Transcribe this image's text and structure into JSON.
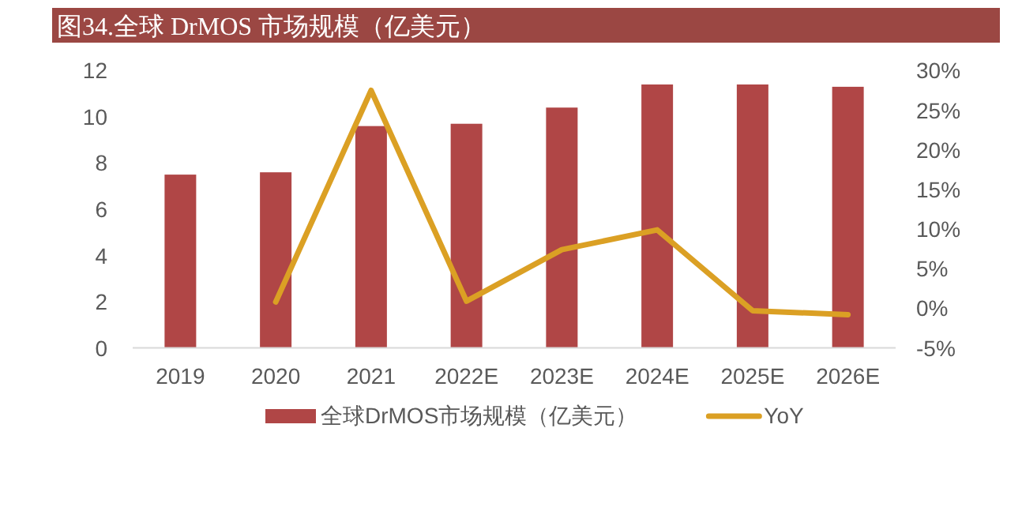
{
  "chart_data": {
    "type": "bar",
    "title": "图34.全球 DrMOS 市场规模（亿美元）",
    "categories": [
      "2019",
      "2020",
      "2021",
      "2022E",
      "2023E",
      "2024E",
      "2025E",
      "2026E"
    ],
    "series": [
      {
        "name": "全球DrMOS市场规模（亿美元）",
        "color": "#b04646",
        "values": [
          7.5,
          7.6,
          9.6,
          9.7,
          10.4,
          11.4,
          11.4,
          11.3
        ]
      },
      {
        "name": "YoY",
        "type": "line",
        "axis": "y2",
        "color": "#dba024",
        "values": [
          null,
          0.8,
          27.5,
          0.9,
          7.4,
          9.9,
          -0.3,
          -0.8
        ]
      }
    ],
    "ylim": [
      0,
      12
    ],
    "yticks": [
      0,
      2,
      4,
      6,
      8,
      10,
      12
    ],
    "y2lim": [
      -5,
      30
    ],
    "y2ticks": [
      {
        "value": -5,
        "label": "-5%"
      },
      {
        "value": 0,
        "label": "0%"
      },
      {
        "value": 5,
        "label": "5%"
      },
      {
        "value": 10,
        "label": "10%"
      },
      {
        "value": 15,
        "label": "15%"
      },
      {
        "value": 20,
        "label": "20%"
      },
      {
        "value": 25,
        "label": "25%"
      },
      {
        "value": 30,
        "label": "30%"
      }
    ],
    "legend": "bottom"
  }
}
